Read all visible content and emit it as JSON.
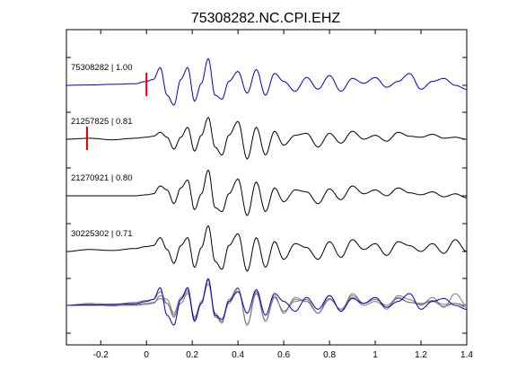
{
  "chart_data": {
    "type": "line",
    "title": "75308282.NC.CPI.EHZ",
    "xlabel": "",
    "ylabel": "",
    "xlim": [
      -0.35,
      1.4
    ],
    "x_ticks": [
      "-0.2",
      "0",
      "0.2",
      "0.4",
      "0.6",
      "0.8",
      "1",
      "1.2",
      "1.4"
    ],
    "x_tick_values": [
      -0.2,
      0,
      0.2,
      0.4,
      0.6,
      0.8,
      1.0,
      1.2,
      1.4
    ],
    "grid": false,
    "colors": {
      "primary": "#0000cc",
      "secondary": "#000000",
      "overlay": "#7a7a7a",
      "pick": "#e00000"
    },
    "series": [
      {
        "name": "75308282 | 1.00",
        "color": "#0000cc",
        "pick_time": 0.0,
        "amp": 1.0,
        "t": [
          -0.35,
          -0.25,
          -0.15,
          -0.05,
          0.0,
          0.03,
          0.06,
          0.09,
          0.12,
          0.15,
          0.18,
          0.21,
          0.24,
          0.27,
          0.3,
          0.33,
          0.36,
          0.4,
          0.44,
          0.48,
          0.52,
          0.56,
          0.6,
          0.65,
          0.7,
          0.75,
          0.8,
          0.85,
          0.9,
          0.95,
          1.0,
          1.05,
          1.1,
          1.15,
          1.2,
          1.25,
          1.3,
          1.35,
          1.4
        ],
        "v": [
          0.0,
          0.02,
          0.05,
          0.08,
          0.2,
          0.3,
          0.9,
          -0.5,
          -1.0,
          0.3,
          0.9,
          -0.8,
          0.1,
          1.35,
          -0.5,
          -0.7,
          0.2,
          0.7,
          -0.4,
          0.8,
          -0.5,
          0.6,
          0.2,
          -0.3,
          0.4,
          -0.2,
          0.5,
          -0.3,
          0.35,
          0.1,
          0.4,
          -0.1,
          0.2,
          0.6,
          -0.2,
          0.2,
          0.35,
          0.0,
          -0.2
        ]
      },
      {
        "name": "21257825 | 0.81",
        "color": "#000000",
        "pick_time": -0.26,
        "amp": 0.81,
        "t": [
          -0.35,
          -0.25,
          -0.15,
          -0.05,
          0.0,
          0.03,
          0.06,
          0.09,
          0.12,
          0.15,
          0.18,
          0.21,
          0.24,
          0.27,
          0.3,
          0.33,
          0.36,
          0.4,
          0.44,
          0.48,
          0.52,
          0.56,
          0.6,
          0.65,
          0.7,
          0.75,
          0.8,
          0.85,
          0.9,
          0.95,
          1.0,
          1.05,
          1.1,
          1.15,
          1.2,
          1.25,
          1.3,
          1.35,
          1.4
        ],
        "v": [
          0.0,
          0.05,
          -0.03,
          0.05,
          0.1,
          0.15,
          0.35,
          0.1,
          -0.5,
          0.1,
          0.6,
          -0.6,
          0.2,
          1.1,
          -0.4,
          -0.8,
          0.2,
          0.9,
          -1.0,
          0.6,
          -0.8,
          0.4,
          -0.3,
          0.2,
          0.3,
          -0.4,
          0.3,
          -0.2,
          0.4,
          0.0,
          0.2,
          -0.1,
          0.35,
          0.15,
          0.1,
          0.25,
          0.05,
          0.1,
          0.0
        ]
      },
      {
        "name": "21270921 | 0.80",
        "color": "#000000",
        "pick_time": null,
        "amp": 0.8,
        "t": [
          -0.35,
          -0.25,
          -0.15,
          -0.05,
          0.0,
          0.03,
          0.06,
          0.09,
          0.12,
          0.15,
          0.18,
          0.21,
          0.24,
          0.27,
          0.3,
          0.33,
          0.36,
          0.4,
          0.44,
          0.48,
          0.52,
          0.56,
          0.6,
          0.65,
          0.7,
          0.75,
          0.8,
          0.85,
          0.9,
          0.95,
          1.0,
          1.05,
          1.1,
          1.15,
          1.2,
          1.25,
          1.3,
          1.35,
          1.4
        ],
        "v": [
          0.0,
          0.0,
          0.0,
          0.0,
          0.05,
          0.1,
          0.5,
          0.3,
          -0.4,
          0.4,
          0.8,
          -0.7,
          0.1,
          1.3,
          -0.6,
          -0.8,
          0.1,
          0.85,
          -1.0,
          0.7,
          -0.8,
          0.4,
          -0.3,
          0.3,
          0.2,
          -0.4,
          0.35,
          -0.2,
          0.5,
          0.1,
          0.3,
          0.0,
          0.4,
          0.15,
          0.05,
          0.2,
          -0.05,
          0.1,
          -0.1
        ]
      },
      {
        "name": "30225302 | 0.71",
        "color": "#000000",
        "pick_time": null,
        "amp": 0.71,
        "t": [
          -0.35,
          -0.25,
          -0.15,
          -0.05,
          0.0,
          0.03,
          0.06,
          0.09,
          0.12,
          0.15,
          0.18,
          0.21,
          0.24,
          0.27,
          0.3,
          0.33,
          0.36,
          0.4,
          0.44,
          0.48,
          0.52,
          0.56,
          0.6,
          0.65,
          0.7,
          0.75,
          0.8,
          0.85,
          0.9,
          0.95,
          1.0,
          1.05,
          1.1,
          1.15,
          1.2,
          1.25,
          1.3,
          1.35,
          1.4
        ],
        "v": [
          0.0,
          0.1,
          0.05,
          0.15,
          0.25,
          0.3,
          0.7,
          0.1,
          -0.6,
          0.3,
          0.7,
          -0.8,
          0.2,
          1.3,
          -0.5,
          -0.9,
          0.3,
          0.9,
          -1.0,
          0.7,
          -0.8,
          0.5,
          -0.4,
          0.4,
          0.2,
          -0.4,
          0.5,
          -0.3,
          0.6,
          0.1,
          0.4,
          -0.2,
          0.5,
          0.3,
          0.0,
          0.4,
          -0.1,
          0.6,
          0.0
        ]
      }
    ],
    "overlay_note": "bottom trace overlays all waveforms aligned"
  }
}
